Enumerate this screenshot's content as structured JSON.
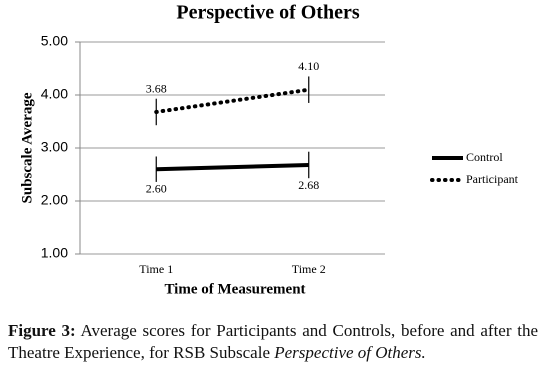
{
  "chart_data": {
    "type": "line",
    "title": "Perspective of Others",
    "x_label": "Time of Measurement",
    "y_label": "Subscale Average",
    "categories": [
      "Time 1",
      "Time 2"
    ],
    "series": [
      {
        "name": "Control",
        "color": "#000000",
        "style": "solid",
        "values": [
          2.6,
          2.68
        ],
        "value_labels": [
          "2.60",
          "2.68"
        ],
        "errors": [
          0.24,
          0.25
        ]
      },
      {
        "name": "Participant",
        "color": "#000000",
        "style": "dotted",
        "values": [
          3.68,
          4.1
        ],
        "value_labels": [
          "3.68",
          "4.10"
        ],
        "errors": [
          0.25,
          0.25
        ]
      }
    ],
    "ylim": [
      1,
      5
    ],
    "yticks": [
      {
        "value": 1,
        "label": "1.00"
      },
      {
        "value": 2,
        "label": "2.00"
      },
      {
        "value": 3,
        "label": "3.00"
      },
      {
        "value": 4,
        "label": "4.00"
      },
      {
        "value": 5,
        "label": "5.00"
      }
    ],
    "grid": true,
    "legend": "right"
  },
  "caption": {
    "label": "Figure 3:",
    "text": "Average scores for Participants and Controls, before and after the Theatre Experience, for RSB Subscale",
    "emphasis": "Perspective of Others."
  }
}
